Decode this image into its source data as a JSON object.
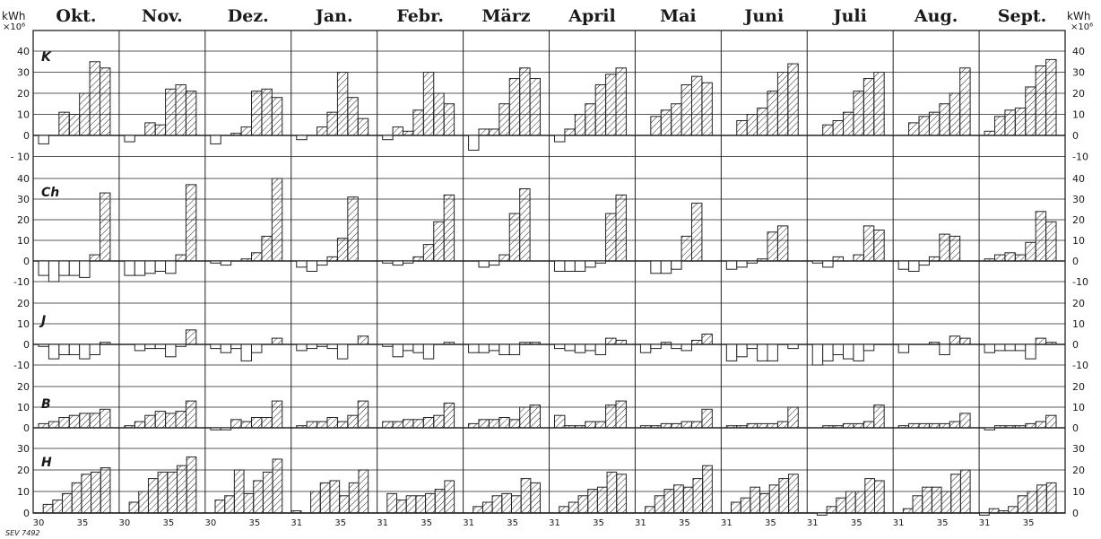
{
  "chart_data": {
    "type": "bar",
    "unit_label": "kWh",
    "unit_multiplier": "×10⁶",
    "months": [
      "Okt.",
      "Nov.",
      "Dez.",
      "Jan.",
      "Febr.",
      "März",
      "April",
      "Mai",
      "Juni",
      "Juli",
      "Aug.",
      "Sept."
    ],
    "week_labels": [
      "30",
      "35",
      "30",
      "35",
      "30",
      "35",
      "31",
      "35",
      "31",
      "35",
      "31",
      "35",
      "31",
      "35",
      "31",
      "35",
      "31",
      "35",
      "31",
      "35",
      "31",
      "35",
      "31",
      "35"
    ],
    "reference_mark": "SEV 7492",
    "rows": [
      {
        "label": "K",
        "ylim": [
          -10,
          40
        ],
        "ticks": [
          "40",
          "30",
          "20",
          "10",
          "0",
          "- 10"
        ],
        "series": [
          [
            -4,
            0,
            11,
            10,
            20,
            35,
            32
          ],
          [
            -3,
            0,
            6,
            5,
            22,
            24,
            21
          ],
          [
            -4,
            0,
            1,
            4,
            21,
            22,
            18
          ],
          [
            -2,
            0,
            4,
            11,
            30,
            18,
            8
          ],
          [
            -2,
            4,
            2,
            12,
            30,
            20,
            15
          ],
          [
            -7,
            3,
            3,
            15,
            27,
            32,
            27
          ],
          [
            -3,
            3,
            10,
            15,
            24,
            29,
            32
          ],
          [
            0,
            9,
            12,
            15,
            24,
            28,
            25
          ],
          [
            0,
            7,
            10,
            13,
            21,
            30,
            34
          ],
          [
            0,
            5,
            7,
            11,
            21,
            27,
            30
          ],
          [
            0,
            6,
            9,
            11,
            15,
            20,
            32
          ],
          [
            2,
            9,
            12,
            13,
            23,
            33,
            36
          ]
        ]
      },
      {
        "label": "Ch",
        "ylim": [
          -10,
          40
        ],
        "ticks": [
          "40",
          "30",
          "20",
          "10",
          "0",
          "-10"
        ],
        "series": [
          [
            -7,
            -10,
            -7,
            -7,
            -8,
            3,
            33
          ],
          [
            -7,
            -7,
            -6,
            -5,
            -6,
            3,
            37
          ],
          [
            -1,
            -2,
            0,
            1,
            4,
            12,
            40
          ],
          [
            -3,
            -5,
            -2,
            2,
            11,
            31,
            0
          ],
          [
            -1,
            -2,
            -1,
            2,
            8,
            19,
            32
          ],
          [
            0,
            -3,
            -2,
            3,
            23,
            35,
            0
          ],
          [
            -5,
            -5,
            -5,
            -3,
            -1,
            23,
            32
          ],
          [
            0,
            -6,
            -6,
            -4,
            12,
            28,
            0
          ],
          [
            -4,
            -3,
            -1,
            1,
            14,
            17,
            0
          ],
          [
            -1,
            -3,
            2,
            0,
            3,
            17,
            15
          ],
          [
            -4,
            -5,
            -2,
            2,
            13,
            12,
            0
          ],
          [
            1,
            3,
            4,
            3,
            9,
            24,
            19
          ]
        ]
      },
      {
        "label": "J",
        "ylim": [
          -10,
          20
        ],
        "ticks": [
          "20",
          "10",
          "0",
          "-10"
        ],
        "series": [
          [
            -1,
            -7,
            -5,
            -5,
            -7,
            -5,
            1
          ],
          [
            0,
            -3,
            -2,
            -2,
            -6,
            -1,
            7
          ],
          [
            -2,
            -4,
            -2,
            -8,
            -4,
            0,
            3
          ],
          [
            -3,
            -2,
            -1,
            -2,
            -7,
            0,
            4
          ],
          [
            -1,
            -6,
            -3,
            -4,
            -7,
            0,
            1
          ],
          [
            -4,
            -4,
            -3,
            -5,
            -5,
            1,
            1
          ],
          [
            -2,
            -3,
            -4,
            -3,
            -5,
            3,
            2
          ],
          [
            -4,
            -2,
            1,
            -2,
            -3,
            2,
            5
          ],
          [
            -8,
            -6,
            -2,
            -8,
            -8,
            0,
            -2
          ],
          [
            -10,
            -8,
            -5,
            -7,
            -8,
            -3,
            0
          ],
          [
            -4,
            0,
            0,
            1,
            -5,
            4,
            3
          ],
          [
            -4,
            -3,
            -3,
            -3,
            -7,
            3,
            1
          ]
        ]
      },
      {
        "label": "B",
        "ylim": [
          0,
          20
        ],
        "ticks": [
          "20",
          "10",
          "0"
        ],
        "series": [
          [
            2,
            3,
            5,
            6,
            7,
            7,
            9
          ],
          [
            1,
            3,
            6,
            8,
            7,
            8,
            13
          ],
          [
            -1,
            -1,
            4,
            3,
            5,
            5,
            13
          ],
          [
            1,
            3,
            3,
            5,
            3,
            6,
            13
          ],
          [
            3,
            3,
            4,
            4,
            5,
            6,
            12
          ],
          [
            2,
            4,
            4,
            5,
            4,
            10,
            11
          ],
          [
            6,
            1,
            1,
            3,
            3,
            11,
            13
          ],
          [
            1,
            1,
            2,
            2,
            3,
            3,
            9
          ],
          [
            1,
            1,
            2,
            2,
            2,
            3,
            10
          ],
          [
            0,
            1,
            1,
            2,
            2,
            3,
            11
          ],
          [
            1,
            2,
            2,
            2,
            2,
            3,
            7
          ],
          [
            -1,
            1,
            1,
            1,
            2,
            3,
            6
          ]
        ]
      },
      {
        "label": "H",
        "ylim": [
          0,
          30
        ],
        "ticks": [
          "30",
          "20",
          "10",
          "0"
        ],
        "series": [
          [
            0,
            4,
            6,
            9,
            14,
            18,
            19,
            21
          ],
          [
            0,
            5,
            10,
            16,
            19,
            19,
            22,
            26
          ],
          [
            0,
            6,
            8,
            20,
            9,
            15,
            19,
            25
          ],
          [
            1,
            0,
            10,
            14,
            15,
            8,
            14,
            20
          ],
          [
            0,
            9,
            6,
            8,
            8,
            9,
            11,
            15
          ],
          [
            0,
            3,
            5,
            8,
            9,
            8,
            16,
            14
          ],
          [
            0,
            3,
            5,
            8,
            11,
            12,
            19,
            18
          ],
          [
            0,
            3,
            8,
            11,
            13,
            12,
            16,
            22
          ],
          [
            0,
            5,
            7,
            12,
            9,
            13,
            16,
            18
          ],
          [
            0,
            -1,
            3,
            7,
            10,
            10,
            16,
            15
          ],
          [
            0,
            2,
            8,
            12,
            12,
            10,
            18,
            20
          ],
          [
            -1,
            2,
            1,
            3,
            8,
            10,
            13,
            14
          ]
        ]
      }
    ]
  }
}
